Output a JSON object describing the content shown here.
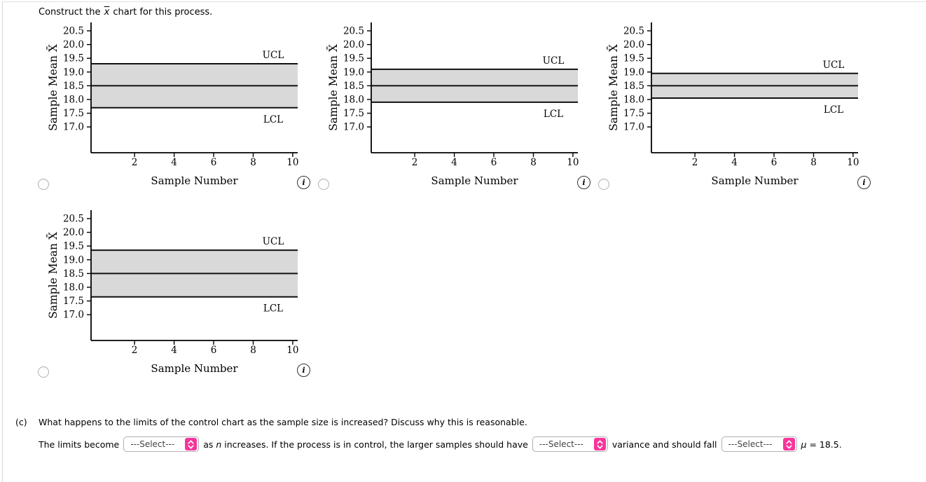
{
  "page": {
    "band_fill": "#d9d9d9",
    "accent_pink": "#f8359b",
    "border_gray": "#d7d7d7"
  },
  "title": {
    "prefix": "Construct the ",
    "xbar": "x",
    "suffix": " chart for this process."
  },
  "icons": {
    "info": "i"
  },
  "chart_data": [
    {
      "type": "area",
      "option": "chart-option-1",
      "ucl": 19.3,
      "center": 18.5,
      "lcl": 17.7,
      "ucl_label": "UCL",
      "lcl_label": "LCL",
      "ylabel": "Sample Mean X̄",
      "xlabel": "Sample Number",
      "yticks": [
        20.5,
        20.0,
        19.5,
        19.0,
        18.5,
        18.0,
        17.5,
        17.0
      ],
      "xticks": [
        2,
        4,
        6,
        8,
        10
      ],
      "ylim": [
        16.1,
        20.8
      ],
      "xlim": [
        -0.2,
        10.25
      ],
      "selected": false
    },
    {
      "type": "area",
      "option": "chart-option-2",
      "ucl": 19.1,
      "center": 18.5,
      "lcl": 17.9,
      "ucl_label": "UCL",
      "lcl_label": "LCL",
      "ylabel": "Sample Mean X̄",
      "xlabel": "Sample Number",
      "yticks": [
        20.5,
        20.0,
        19.5,
        19.0,
        18.5,
        18.0,
        17.5,
        17.0
      ],
      "xticks": [
        2,
        4,
        6,
        8,
        10
      ],
      "ylim": [
        16.1,
        20.8
      ],
      "xlim": [
        -0.2,
        10.25
      ],
      "selected": false
    },
    {
      "type": "area",
      "option": "chart-option-3",
      "ucl": 18.95,
      "center": 18.5,
      "lcl": 18.05,
      "ucl_label": "UCL",
      "lcl_label": "LCL",
      "ylabel": "Sample Mean X̄",
      "xlabel": "Sample Number",
      "yticks": [
        20.5,
        20.0,
        19.5,
        19.0,
        18.5,
        18.0,
        17.5,
        17.0
      ],
      "xticks": [
        2,
        4,
        6,
        8,
        10
      ],
      "ylim": [
        16.1,
        20.8
      ],
      "xlim": [
        -0.2,
        10.25
      ],
      "selected": false
    },
    {
      "type": "area",
      "option": "chart-option-4",
      "ucl": 19.35,
      "center": 18.5,
      "lcl": 17.65,
      "ucl_label": "UCL",
      "lcl_label": "LCL",
      "ylabel": "Sample Mean X̄",
      "xlabel": "Sample Number",
      "yticks": [
        20.5,
        20.0,
        19.5,
        19.0,
        18.5,
        18.0,
        17.5,
        17.0
      ],
      "xticks": [
        2,
        4,
        6,
        8,
        10
      ],
      "ylim": [
        16.1,
        20.8
      ],
      "xlim": [
        -0.2,
        10.25
      ],
      "selected": false
    }
  ],
  "part_c": {
    "label": "(c)",
    "question": "What happens to the limits of the control chart as the sample size is increased? Discuss why this is reasonable.",
    "s1": "The limits become",
    "s2a": "as ",
    "s2n": "n",
    "s2b": " increases. If the process is in control, the larger samples should have",
    "s3": "variance and should fall",
    "s4mu": "μ",
    "s4rest": " = 18.5.",
    "selects": {
      "limits": "---Select---",
      "variance": "---Select---",
      "fall": "---Select---"
    }
  }
}
